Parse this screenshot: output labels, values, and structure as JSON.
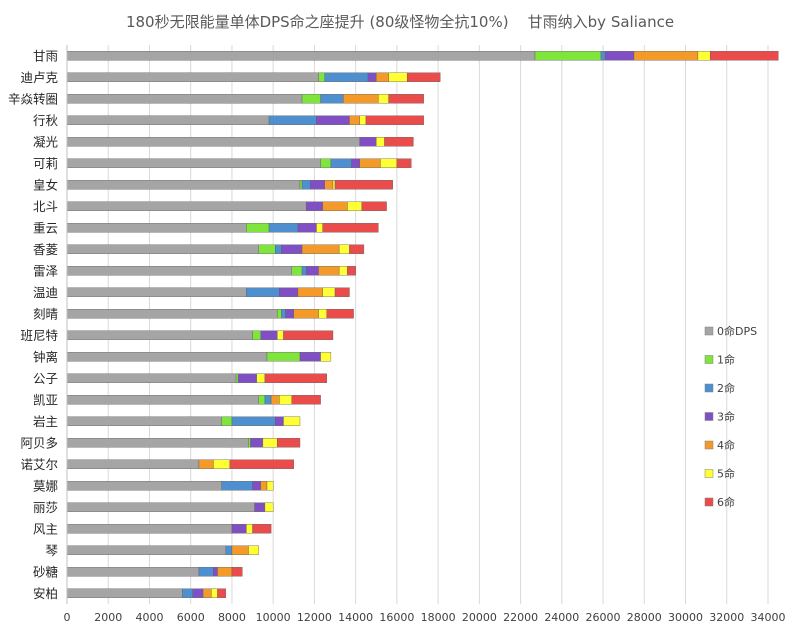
{
  "chart_data": {
    "type": "bar",
    "orientation": "horizontal",
    "stacked": true,
    "title": "180秒无限能量单体DPS命之座提升 (80级怪物全抗10%)    甘雨纳入by Saliance",
    "xlabel": "",
    "ylabel": "",
    "xlim": [
      0,
      34000
    ],
    "xticks": [
      0,
      2000,
      4000,
      6000,
      8000,
      10000,
      12000,
      14000,
      16000,
      18000,
      20000,
      22000,
      24000,
      26000,
      28000,
      30000,
      32000,
      34000
    ],
    "xtick_labels": [
      "0",
      "2000",
      "4000",
      "6000",
      "8000",
      "10000",
      "12000",
      "14000",
      "16000",
      "18000",
      "20000",
      "22000",
      "24000",
      "26000",
      "28000",
      "30000",
      "32000",
      "34000"
    ],
    "grid": true,
    "legend_position": "right",
    "categories": [
      "甘雨",
      "迪卢克",
      "辛焱转圈",
      "行秋",
      "凝光",
      "可莉",
      "皇女",
      "北斗",
      "重云",
      "香菱",
      "雷泽",
      "温迪",
      "刻晴",
      "班尼特",
      "钟离",
      "公子",
      "凯亚",
      "岩主",
      "阿贝多",
      "诺艾尔",
      "莫娜",
      "丽莎",
      "风主",
      "琴",
      "砂糖",
      "安柏"
    ],
    "series": [
      {
        "name": "0命DPS",
        "color": "#a5a5a5",
        "values": [
          22700,
          12200,
          11400,
          9800,
          14200,
          12300,
          11300,
          11600,
          8700,
          9300,
          10900,
          8700,
          10200,
          9000,
          9700,
          8200,
          9300,
          7500,
          8800,
          6400,
          7500,
          9100,
          8000,
          7700,
          6400,
          5600
        ]
      },
      {
        "name": "1命",
        "color": "#7fe43c",
        "values": [
          3200,
          300,
          900,
          0,
          0,
          500,
          100,
          0,
          1100,
          800,
          500,
          0,
          200,
          400,
          1600,
          100,
          300,
          500,
          100,
          0,
          0,
          0,
          0,
          0,
          0,
          0
        ]
      },
      {
        "name": "2命",
        "color": "#4e8fd0",
        "values": [
          200,
          2100,
          1100,
          2300,
          0,
          1000,
          400,
          0,
          1400,
          300,
          200,
          1600,
          200,
          0,
          0,
          0,
          300,
          2100,
          0,
          0,
          1500,
          0,
          0,
          300,
          700,
          500
        ]
      },
      {
        "name": "3命",
        "color": "#7f4fc3",
        "values": [
          1400,
          400,
          0,
          1600,
          800,
          400,
          700,
          800,
          900,
          1000,
          600,
          900,
          400,
          800,
          1000,
          900,
          0,
          400,
          600,
          0,
          400,
          500,
          700,
          0,
          200,
          500
        ]
      },
      {
        "name": "4命",
        "color": "#f39a2b",
        "values": [
          3100,
          600,
          1700,
          500,
          0,
          1000,
          400,
          1200,
          0,
          1800,
          1000,
          1200,
          1200,
          0,
          0,
          0,
          400,
          0,
          0,
          700,
          300,
          0,
          0,
          800,
          700,
          400
        ]
      },
      {
        "name": "5命",
        "color": "#ffff33",
        "values": [
          600,
          900,
          500,
          300,
          400,
          800,
          100,
          700,
          300,
          500,
          400,
          600,
          400,
          300,
          500,
          400,
          600,
          800,
          700,
          800,
          300,
          400,
          300,
          500,
          0,
          300
        ]
      },
      {
        "name": "6命",
        "color": "#ea4b4b",
        "values": [
          3300,
          1600,
          1700,
          2800,
          1400,
          700,
          2800,
          1200,
          2700,
          700,
          400,
          700,
          1300,
          2400,
          0,
          3000,
          1400,
          0,
          1100,
          3100,
          0,
          0,
          900,
          0,
          500,
          400
        ]
      }
    ]
  }
}
